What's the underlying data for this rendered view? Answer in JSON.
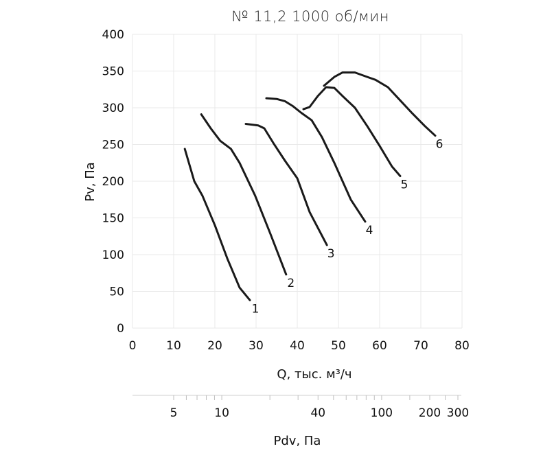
{
  "chart_data": {
    "type": "line",
    "title": "№ 11,2 1000 об/мин",
    "xlabel": "Q, тыс. м³/ч",
    "ylabel": "Pv, Па",
    "secondary_xlabel": "Pdv, Па",
    "xlim": [
      0,
      80
    ],
    "ylim": [
      0,
      400
    ],
    "x_ticks": [
      0,
      10,
      20,
      30,
      40,
      50,
      60,
      70,
      80
    ],
    "y_ticks": [
      0,
      50,
      100,
      150,
      200,
      250,
      300,
      350,
      400
    ],
    "secondary_x_ticks": [
      "5",
      "10",
      "40",
      "100",
      "200",
      "300"
    ],
    "grid": true,
    "series": [
      {
        "name": "1",
        "points": [
          [
            12.7,
            244
          ],
          [
            15,
            200
          ],
          [
            17,
            180
          ],
          [
            20,
            140
          ],
          [
            23,
            95
          ],
          [
            26,
            55
          ],
          [
            28.5,
            38
          ]
        ]
      },
      {
        "name": "2",
        "points": [
          [
            16.7,
            291
          ],
          [
            19,
            272
          ],
          [
            21.3,
            255
          ],
          [
            23.9,
            244
          ],
          [
            26,
            225
          ],
          [
            29.8,
            180
          ],
          [
            33.5,
            128
          ],
          [
            37.3,
            73
          ]
        ]
      },
      {
        "name": "3",
        "points": [
          [
            27.5,
            278
          ],
          [
            30.5,
            276
          ],
          [
            32,
            272
          ],
          [
            34.2,
            252
          ],
          [
            37,
            228
          ],
          [
            40,
            204
          ],
          [
            43,
            158
          ],
          [
            47.2,
            113
          ]
        ]
      },
      {
        "name": "4",
        "points": [
          [
            32.5,
            313
          ],
          [
            35,
            312
          ],
          [
            37,
            309
          ],
          [
            39,
            302
          ],
          [
            41,
            293
          ],
          [
            43.5,
            283
          ],
          [
            46,
            260
          ],
          [
            49,
            225
          ],
          [
            53,
            175
          ],
          [
            56.5,
            145
          ]
        ]
      },
      {
        "name": "5",
        "points": [
          [
            41.5,
            298
          ],
          [
            43,
            301
          ],
          [
            45,
            316
          ],
          [
            47,
            328
          ],
          [
            49,
            327
          ],
          [
            51,
            316
          ],
          [
            54,
            300
          ],
          [
            57,
            275
          ],
          [
            60,
            248
          ],
          [
            63,
            220
          ],
          [
            65,
            207
          ]
        ]
      },
      {
        "name": "6",
        "points": [
          [
            46.5,
            330
          ],
          [
            49,
            342
          ],
          [
            51,
            348
          ],
          [
            54,
            348
          ],
          [
            57,
            342
          ],
          [
            59,
            338
          ],
          [
            62,
            328
          ],
          [
            65,
            310
          ],
          [
            68,
            292
          ],
          [
            71,
            275
          ],
          [
            73.5,
            262
          ]
        ]
      }
    ]
  }
}
